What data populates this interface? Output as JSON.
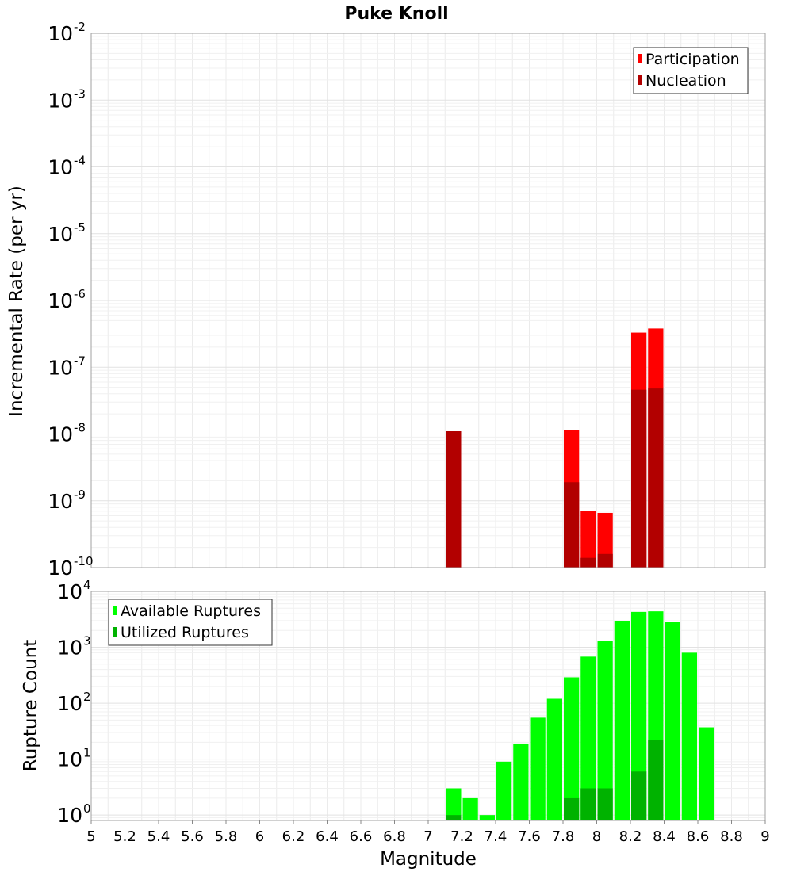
{
  "chart_data": [
    {
      "type": "bar",
      "title": "Puke Knoll",
      "xlabel": "",
      "ylabel": "Incremental Rate (per yr)",
      "yscale": "log",
      "xlim": [
        5,
        9
      ],
      "ylim": [
        1e-10,
        0.01
      ],
      "y_ticks": [
        {
          "base": "10",
          "exp": "-2",
          "value": 0.01
        },
        {
          "base": "10",
          "exp": "-3",
          "value": 0.001
        },
        {
          "base": "10",
          "exp": "-4",
          "value": 0.0001
        },
        {
          "base": "10",
          "exp": "-5",
          "value": 1e-05
        },
        {
          "base": "10",
          "exp": "-6",
          "value": 1e-06
        },
        {
          "base": "10",
          "exp": "-7",
          "value": 1e-07
        },
        {
          "base": "10",
          "exp": "-8",
          "value": 1e-08
        },
        {
          "base": "10",
          "exp": "-9",
          "value": 1e-09
        },
        {
          "base": "10",
          "exp": "-10",
          "value": 1e-10
        }
      ],
      "grid": true,
      "legend_position": "top-right",
      "bar_width": 0.1,
      "series": [
        {
          "name": "Participation",
          "color": "#ff0000",
          "points": [
            {
              "x": 7.15,
              "y": 1.1e-08
            },
            {
              "x": 7.85,
              "y": 1.15e-08
            },
            {
              "x": 7.95,
              "y": 7e-10
            },
            {
              "x": 8.05,
              "y": 6.6e-10
            },
            {
              "x": 8.25,
              "y": 3.3e-07
            },
            {
              "x": 8.35,
              "y": 3.8e-07
            }
          ]
        },
        {
          "name": "Nucleation",
          "color": "#b20000",
          "points": [
            {
              "x": 7.15,
              "y": 1.1e-08
            },
            {
              "x": 7.85,
              "y": 1.9e-09
            },
            {
              "x": 7.95,
              "y": 1.4e-10
            },
            {
              "x": 8.05,
              "y": 1.6e-10
            },
            {
              "x": 8.25,
              "y": 4.6e-08
            },
            {
              "x": 8.35,
              "y": 4.8e-08
            }
          ]
        }
      ]
    },
    {
      "type": "bar",
      "title": "",
      "xlabel": "Magnitude",
      "ylabel": "Rupture Count",
      "yscale": "log",
      "xlim": [
        5,
        9
      ],
      "ylim": [
        0.8,
        10000
      ],
      "x_ticks": [
        "5",
        "5.2",
        "5.4",
        "5.6",
        "5.8",
        "6",
        "6.2",
        "6.4",
        "6.6",
        "6.8",
        "7",
        "7.2",
        "7.4",
        "7.6",
        "7.8",
        "8",
        "8.2",
        "8.4",
        "8.6",
        "8.8",
        "9"
      ],
      "y_ticks": [
        {
          "base": "10",
          "exp": "4",
          "value": 10000
        },
        {
          "base": "10",
          "exp": "3",
          "value": 1000
        },
        {
          "base": "10",
          "exp": "2",
          "value": 100
        },
        {
          "base": "10",
          "exp": "1",
          "value": 10
        },
        {
          "base": "10",
          "exp": "0",
          "value": 1
        }
      ],
      "grid": true,
      "legend_position": "top-left",
      "bar_width": 0.1,
      "series": [
        {
          "name": "Available Ruptures",
          "color": "#00ff00",
          "points": [
            {
              "x": 7.15,
              "y": 3
            },
            {
              "x": 7.25,
              "y": 2
            },
            {
              "x": 7.35,
              "y": 1
            },
            {
              "x": 7.45,
              "y": 9
            },
            {
              "x": 7.55,
              "y": 19
            },
            {
              "x": 7.65,
              "y": 55
            },
            {
              "x": 7.75,
              "y": 120
            },
            {
              "x": 7.85,
              "y": 290
            },
            {
              "x": 7.95,
              "y": 680
            },
            {
              "x": 8.05,
              "y": 1300
            },
            {
              "x": 8.15,
              "y": 2900
            },
            {
              "x": 8.25,
              "y": 4300
            },
            {
              "x": 8.35,
              "y": 4400
            },
            {
              "x": 8.45,
              "y": 2800
            },
            {
              "x": 8.55,
              "y": 800
            },
            {
              "x": 8.65,
              "y": 37
            }
          ]
        },
        {
          "name": "Utilized Ruptures",
          "color": "#00b200",
          "points": [
            {
              "x": 7.15,
              "y": 1
            },
            {
              "x": 7.85,
              "y": 2
            },
            {
              "x": 7.95,
              "y": 3
            },
            {
              "x": 8.05,
              "y": 3
            },
            {
              "x": 8.25,
              "y": 6
            },
            {
              "x": 8.35,
              "y": 22
            }
          ]
        }
      ]
    }
  ]
}
